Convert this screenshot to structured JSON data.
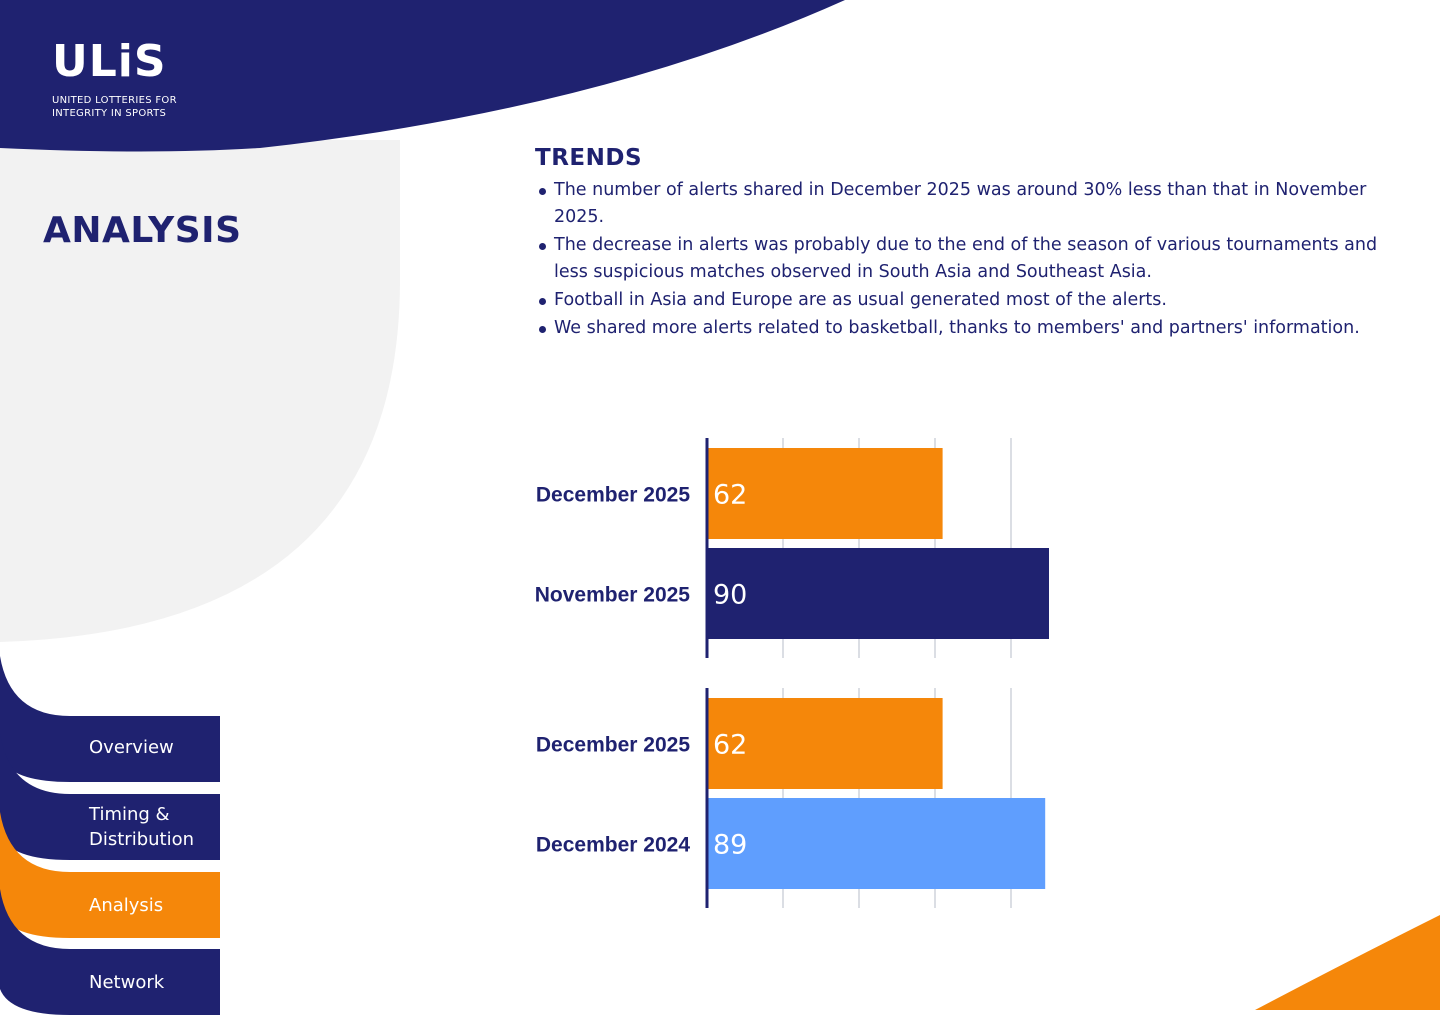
{
  "brand": {
    "logo_text": "ULiS",
    "tagline": [
      "UNITED LOTTERIES FOR",
      "INTEGRITY IN SPORTS"
    ]
  },
  "page": {
    "title": "ANALYSIS"
  },
  "nav": {
    "items": [
      {
        "label": [
          "Overview"
        ],
        "active": false
      },
      {
        "label": [
          "Timing &",
          "Distribution"
        ],
        "active": false
      },
      {
        "label": [
          "Analysis"
        ],
        "active": true
      },
      {
        "label": [
          "Network"
        ],
        "active": false
      }
    ]
  },
  "trends": {
    "title": "TRENDS",
    "bullets": [
      "The number of alerts shared in December 2025 was around 30% less than that in November 2025.",
      "The decrease in alerts was probably due to the end of the season of various tournaments and less suspicious matches observed in South Asia and Southeast Asia.",
      "Football in Asia and Europe are as usual generated most of the alerts.",
      "We shared more alerts related to basketball, thanks to members' and partners' information."
    ]
  },
  "colors": {
    "navy": "#1f2270",
    "orange": "#f5870a",
    "light_blue": "#5f9efe",
    "light_gray": "#f2f2f2",
    "grid": "#cfd3dc",
    "white": "#ffffff"
  },
  "chart_data": [
    {
      "type": "bar",
      "orientation": "horizontal",
      "categories": [
        "December 2025",
        "November 2025"
      ],
      "values": [
        62,
        90
      ],
      "colors": [
        "#f5870a",
        "#1f2270"
      ],
      "xlim": [
        0,
        100
      ],
      "gridlines": [
        20,
        40,
        60,
        80
      ],
      "grid": true,
      "data_labels": true
    },
    {
      "type": "bar",
      "orientation": "horizontal",
      "categories": [
        "December 2025",
        "December 2024"
      ],
      "values": [
        62,
        89
      ],
      "colors": [
        "#f5870a",
        "#5f9efe"
      ],
      "xlim": [
        0,
        100
      ],
      "gridlines": [
        20,
        40,
        60,
        80
      ],
      "grid": true,
      "data_labels": true
    }
  ]
}
